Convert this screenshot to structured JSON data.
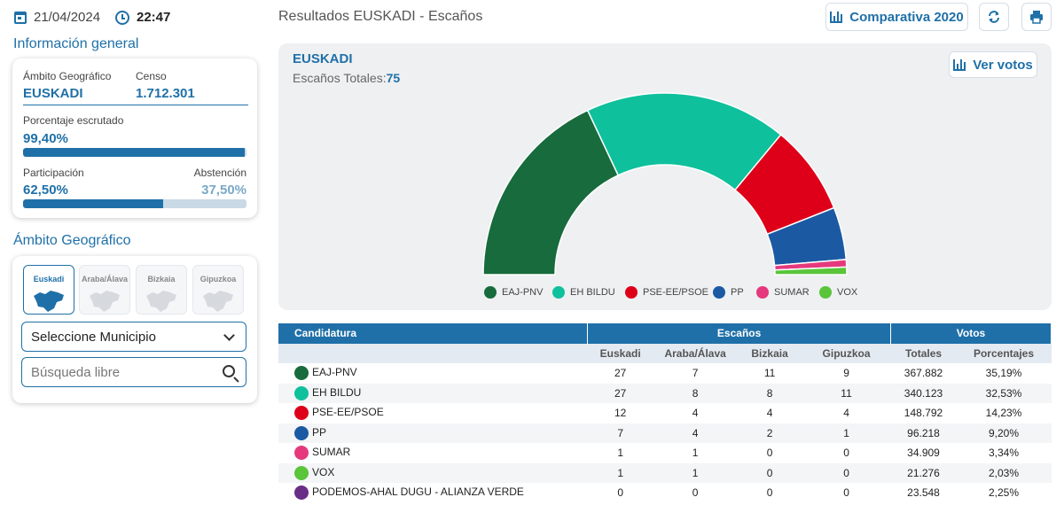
{
  "header": {
    "date": "21/04/2024",
    "time": "22:47",
    "title": "Resultados  EUSKADI - Escaños",
    "compare_label": "Comparativa 2020"
  },
  "info": {
    "section_title": "Información general",
    "ambito_label": "Ámbito Geográfico",
    "ambito_value": "EUSKADI",
    "censo_label": "Censo",
    "censo_value": "1.712.301",
    "escrutado_label": "Porcentaje escrutado",
    "escrutado_value": "99,40%",
    "escrutado_fraction": 0.994,
    "participacion_label": "Participación",
    "participacion_value": "62,50%",
    "participacion_fraction": 0.625,
    "abstencion_label": "Abstención",
    "abstencion_value": "37,50%"
  },
  "geo": {
    "section_title": "Ámbito Geográfico",
    "tiles": [
      "Euskadi",
      "Araba/Álava",
      "Bizkaia",
      "Gipuzkoa"
    ],
    "active_tile": "Euskadi",
    "municipio_select": "Seleccione Municipio",
    "search_placeholder": "Búsqueda libre"
  },
  "chart": {
    "region": "EUSKADI",
    "seats_label": "Escaños Totales:",
    "seats_total": "75",
    "ver_votos_label": "Ver votos"
  },
  "chart_data": {
    "type": "pie",
    "categories": [
      "EAJ-PNV",
      "EH BILDU",
      "PSE-EE/PSOE",
      "PP",
      "SUMAR",
      "VOX"
    ],
    "values": [
      27,
      27,
      12,
      7,
      1,
      1
    ],
    "colors": [
      "#176b3c",
      "#0fc09c",
      "#de0019",
      "#1b5aa3",
      "#e5397d",
      "#5ac43a"
    ],
    "legend_placement": "bottom"
  },
  "table": {
    "h_candidatura": "Candidatura",
    "h_escanos": "Escaños",
    "h_votos": "Votos",
    "sub": [
      "Euskadi",
      "Araba/Álava",
      "Bizkaia",
      "Gipuzkoa",
      "Totales",
      "Porcentajes"
    ],
    "rows": [
      {
        "name": "EAJ-PNV",
        "color": "#176b3c",
        "euskadi": "27",
        "araba": "7",
        "bizkaia": "11",
        "gipuzkoa": "9",
        "totales": "367.882",
        "pct": "35,19%"
      },
      {
        "name": "EH BILDU",
        "color": "#0fc09c",
        "euskadi": "27",
        "araba": "8",
        "bizkaia": "8",
        "gipuzkoa": "11",
        "totales": "340.123",
        "pct": "32,53%"
      },
      {
        "name": "PSE-EE/PSOE",
        "color": "#de0019",
        "euskadi": "12",
        "araba": "4",
        "bizkaia": "4",
        "gipuzkoa": "4",
        "totales": "148.792",
        "pct": "14,23%"
      },
      {
        "name": "PP",
        "color": "#1b5aa3",
        "euskadi": "7",
        "araba": "4",
        "bizkaia": "2",
        "gipuzkoa": "1",
        "totales": "96.218",
        "pct": "9,20%"
      },
      {
        "name": "SUMAR",
        "color": "#e5397d",
        "euskadi": "1",
        "araba": "1",
        "bizkaia": "0",
        "gipuzkoa": "0",
        "totales": "34.909",
        "pct": "3,34%"
      },
      {
        "name": "VOX",
        "color": "#5ac43a",
        "euskadi": "1",
        "araba": "1",
        "bizkaia": "0",
        "gipuzkoa": "0",
        "totales": "21.276",
        "pct": "2,03%"
      },
      {
        "name": "PODEMOS-AHAL DUGU - ALIANZA VERDE",
        "color": "#6a2d86",
        "euskadi": "0",
        "araba": "0",
        "bizkaia": "0",
        "gipuzkoa": "0",
        "totales": "23.548",
        "pct": "2,25%"
      }
    ]
  }
}
